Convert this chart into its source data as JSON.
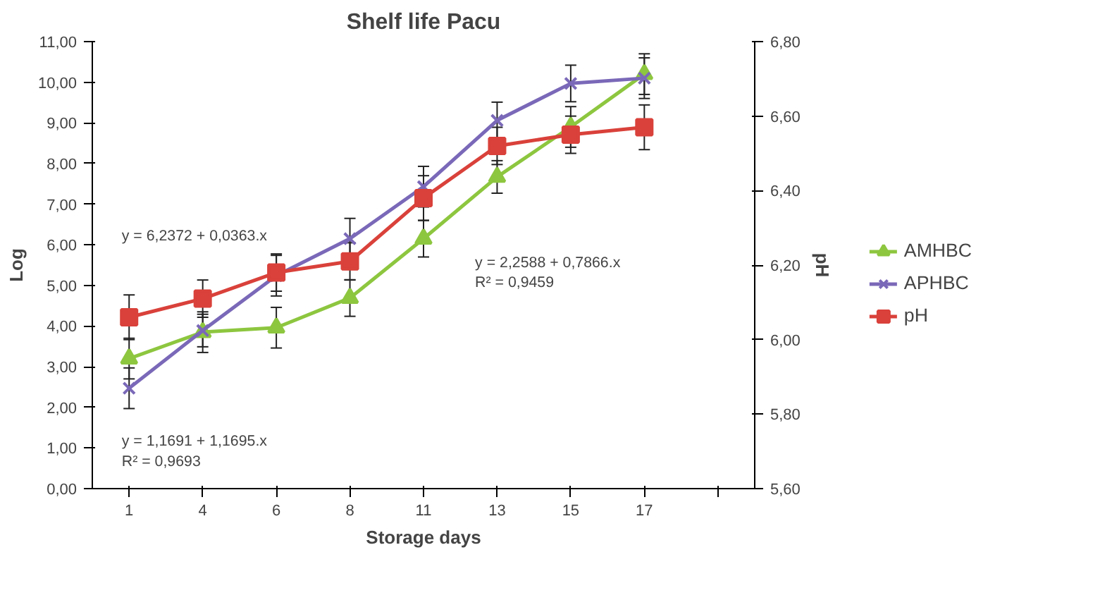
{
  "chart_data": {
    "type": "line",
    "title": "Shelf life Pacu",
    "xlabel": "Storage days",
    "ylabel": "Log",
    "y2label": "pH",
    "categories": [
      "1",
      "4",
      "6",
      "8",
      "11",
      "13",
      "15",
      "17",
      null
    ],
    "series": [
      {
        "name": "AMHBC",
        "color": "#8dc63f",
        "marker": "triangle",
        "values": [
          3.2,
          3.85,
          3.96,
          4.69,
          6.15,
          7.67,
          8.9,
          10.2,
          null
        ],
        "errors": [
          0.5,
          0.5,
          0.5,
          0.45,
          0.45,
          0.4,
          0.5,
          0.5,
          null
        ]
      },
      {
        "name": "APHBC",
        "color": "#7a68b8",
        "marker": "cross",
        "values": [
          2.47,
          3.89,
          5.24,
          6.15,
          7.43,
          9.06,
          9.97,
          10.1,
          null
        ],
        "errors": [
          0.5,
          0.4,
          0.5,
          0.5,
          0.5,
          0.45,
          0.45,
          0.5,
          null
        ]
      },
      {
        "name": "pH",
        "color": "#d9413a",
        "marker": "square",
        "axis": "y2",
        "values": [
          6.06,
          6.11,
          6.18,
          6.21,
          6.38,
          6.52,
          6.55,
          6.57,
          null
        ],
        "errors": [
          0.06,
          0.05,
          0.05,
          0.05,
          0.06,
          0.05,
          0.05,
          0.06,
          null
        ]
      }
    ],
    "ylim": [
      0,
      11
    ],
    "yticks": [
      {
        "value": 0,
        "label": "0,00"
      },
      {
        "value": 1,
        "label": "1,00"
      },
      {
        "value": 2,
        "label": "2,00"
      },
      {
        "value": 3,
        "label": "3,00"
      },
      {
        "value": 4,
        "label": "4,00"
      },
      {
        "value": 5,
        "label": "5,00"
      },
      {
        "value": 6,
        "label": "6,00"
      },
      {
        "value": 7,
        "label": "7,00"
      },
      {
        "value": 8,
        "label": "8,00"
      },
      {
        "value": 9,
        "label": "9,00"
      },
      {
        "value": 10,
        "label": "10,00"
      },
      {
        "value": 11,
        "label": "11,00"
      }
    ],
    "y2lim": [
      5.6,
      6.8
    ],
    "y2ticks": [
      {
        "value": 5.6,
        "label": "5,60"
      },
      {
        "value": 5.8,
        "label": "5,80"
      },
      {
        "value": 6.0,
        "label": "6,00"
      },
      {
        "value": 6.2,
        "label": "6,20"
      },
      {
        "value": 6.4,
        "label": "6,40"
      },
      {
        "value": 6.6,
        "label": "6,60"
      },
      {
        "value": 6.8,
        "label": "6,80"
      }
    ],
    "annotations": [
      "y = 6,2372 + 0,0363.x",
      "y = 1,1691 + 1,1695.x\nR² = 0,9693",
      "y = 2,2588 + 0,7866.x\nR² = 0,9459"
    ],
    "legend": "right",
    "grid": false
  }
}
